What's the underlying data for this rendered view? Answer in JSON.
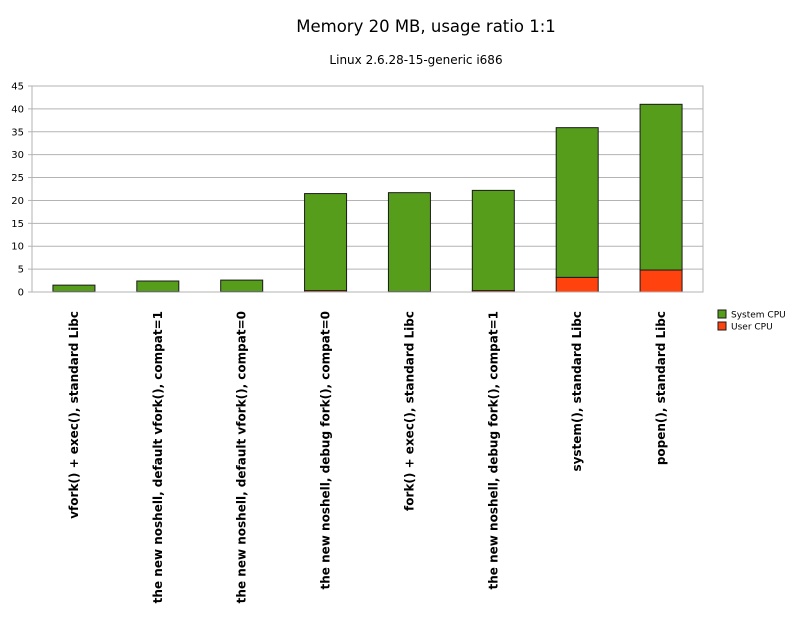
{
  "chart_data": {
    "type": "bar",
    "stacked": true,
    "title": "Memory 20 MB, usage ratio 1:1",
    "subtitle": "Linux 2.6.28-15-generic i686",
    "xlabel": "",
    "ylabel": "",
    "ylim": [
      0,
      45
    ],
    "yticks": [
      "0",
      "5",
      "10",
      "15",
      "20",
      "25",
      "30",
      "35",
      "40",
      "45"
    ],
    "grid": true,
    "legend_position": "right",
    "categories": [
      "vfork() + exec(), standard Libc",
      "the new noshell, default vfork(), compat=1",
      "the new noshell, default vfork(), compat=0",
      "the new noshell, debug fork(), compat=0",
      "fork() + exec(), standard Libc",
      "the new noshell, debug fork(), compat=1",
      "system(), standard Libc",
      "popen(), standard Libc"
    ],
    "series": [
      {
        "name": "User CPU",
        "color": "#ff420e",
        "values": [
          0.1,
          0.1,
          0.1,
          0.3,
          0.1,
          0.3,
          3.2,
          4.8
        ]
      },
      {
        "name": "System CPU",
        "color": "#579d1c",
        "values": [
          1.4,
          2.3,
          2.5,
          21.2,
          21.6,
          21.9,
          32.7,
          36.2
        ]
      }
    ],
    "legend_order": [
      "System CPU",
      "User CPU"
    ]
  }
}
